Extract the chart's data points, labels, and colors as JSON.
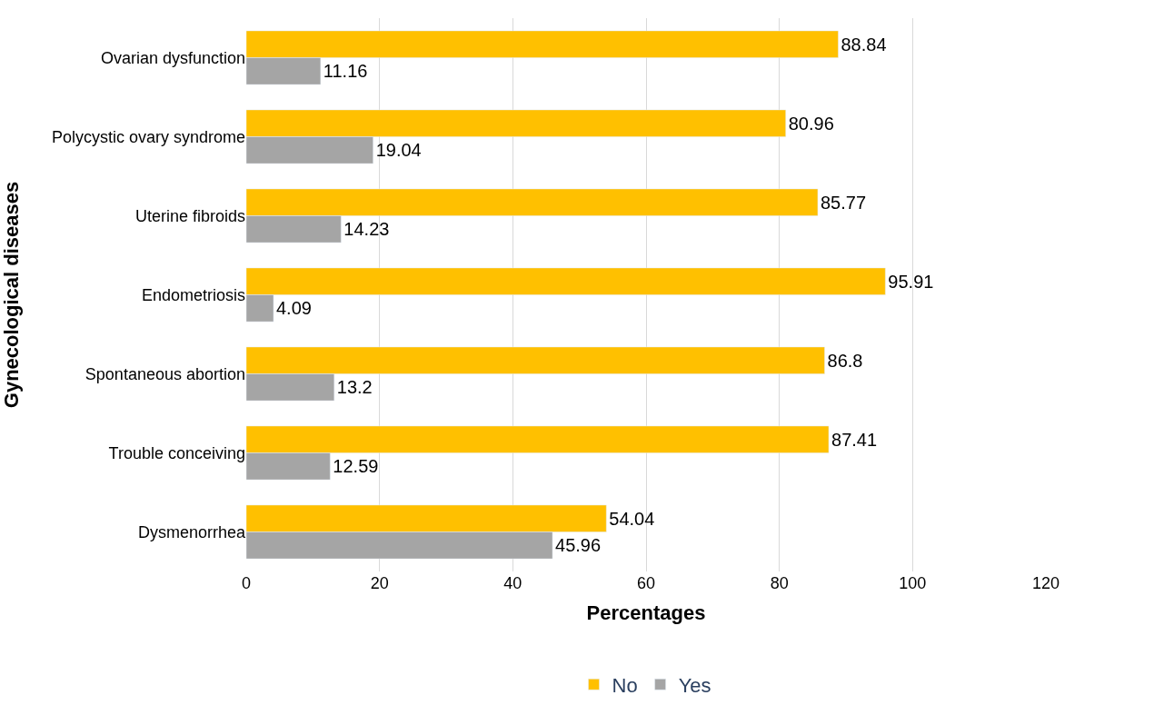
{
  "chart_data": {
    "type": "bar",
    "orientation": "horizontal",
    "xlabel": "Percentages",
    "ylabel": "Gynecological diseases",
    "categories": [
      "Ovarian dysfunction",
      "Polycystic ovary syndrome",
      "Uterine fibroids",
      "Endometriosis",
      "Spontaneous abortion",
      "Trouble conceiving",
      "Dysmenorrhea"
    ],
    "series": [
      {
        "name": "No",
        "color": "#ffc000",
        "values": [
          88.84,
          80.96,
          85.77,
          95.91,
          86.8,
          87.41,
          54.04
        ]
      },
      {
        "name": "Yes",
        "color": "#a5a5a5",
        "values": [
          11.16,
          19.04,
          14.23,
          4.09,
          13.2,
          12.59,
          45.96
        ]
      }
    ],
    "xlim": [
      0,
      120
    ],
    "xticks": [
      0,
      20,
      40,
      60,
      80,
      100,
      120
    ],
    "grid": "x",
    "legend": "bottom",
    "data_labels": true
  }
}
